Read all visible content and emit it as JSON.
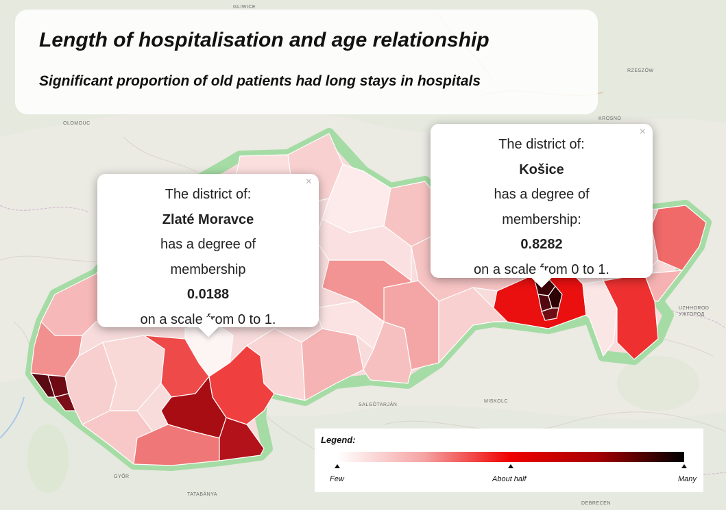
{
  "title": "Length of hospitalisation and age relationship",
  "subtitle": "Significant proportion of old patients had long stays in hospitals",
  "popups": {
    "zlate_moravce": {
      "line1": "The district of:",
      "district": "Zlaté Moravce",
      "line3": "has a degree of",
      "line4": "membership",
      "value": "0.0188",
      "line6": "on a scale from 0 to 1.",
      "close": "×"
    },
    "kosice": {
      "line1": "The district of:",
      "district": "Košice",
      "line3": "has a degree of",
      "line4": "membership:",
      "value": "0.8282",
      "line6": "on a scale from 0 to 1.",
      "close": "×"
    }
  },
  "legend": {
    "title": "Legend:",
    "few": "Few",
    "half": "About half",
    "many": "Many"
  },
  "basemap_labels": {
    "gliwice": "GLIWICE",
    "rzeszow": "RZESZÓW",
    "krosno": "KROSNO",
    "olomouc": "OLOMOUC",
    "salgotarjan": "SALGÓTARJÁN",
    "miskolc": "MISKOLC",
    "gyor": "GYŐR",
    "tatabanya": "TATABÁNYA",
    "uzhhorod": "UZHHOROD",
    "uzhhorod_cyr": "УЖГОРОД",
    "debrecen": "DEBRECEN"
  },
  "colors": {
    "few": "#ffffff",
    "half": "#ef0000",
    "many": "#000000",
    "border": "#9dd99d"
  }
}
